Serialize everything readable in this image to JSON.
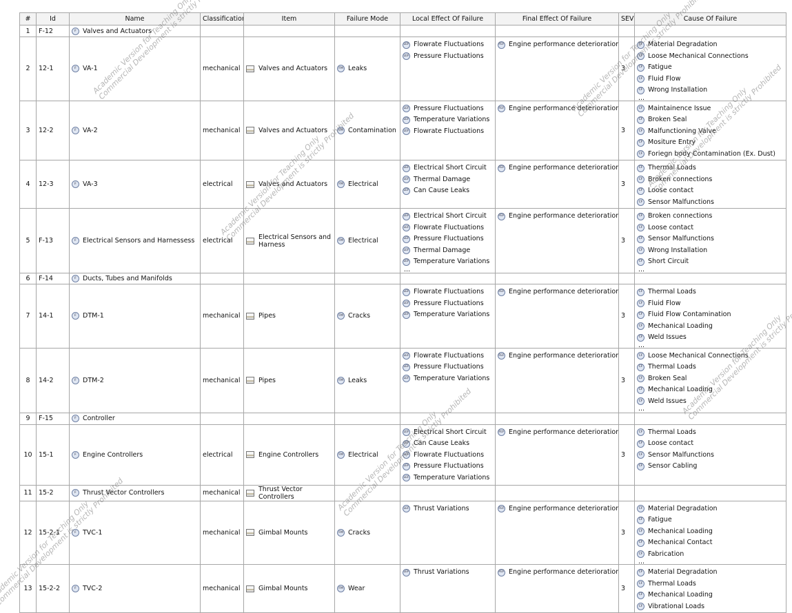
{
  "columns": [
    "#",
    "Id",
    "Name",
    "Classification",
    "Item",
    "Failure Mode",
    "Local Effect Of Failure",
    "Final Effect Of Failure",
    "SEV",
    "Cause Of Failure"
  ],
  "icons": {
    "function": "F",
    "failure_mode": "FM",
    "local": "LEF",
    "final": "FEF",
    "cause": "CF"
  },
  "ellipsis": "...",
  "watermark": [
    "Academic Version for Teaching Only",
    "Commercial Development is strictly Prohibited"
  ],
  "rows": [
    {
      "num": "1",
      "id": "F-12",
      "name": "Valves and Actuators"
    },
    {
      "num": "2",
      "id": "12-1",
      "name": "VA-1",
      "classification": "mechanical",
      "item": "Valves and Actuators",
      "failure_mode": "Leaks",
      "local": [
        "Flowrate Fluctuations",
        "Pressure Fluctuations"
      ],
      "final": [
        "Engine performance deterioration"
      ],
      "sev": "3",
      "causes": [
        "Material Degradation",
        "Loose Mechanical Connections",
        "Fatigue",
        "Fluid Flow",
        "Wrong Installation"
      ],
      "causes_truncated": true
    },
    {
      "num": "3",
      "id": "12-2",
      "name": "VA-2",
      "classification": "mechanical",
      "item": "Valves and Actuators",
      "failure_mode": "Contamination",
      "local": [
        "Pressure Fluctuations",
        "Temperature Variations",
        "Flowrate Fluctuations"
      ],
      "final": [
        "Engine performance deterioration"
      ],
      "sev": "3",
      "causes": [
        "Maintainence Issue",
        "Broken Seal",
        "Malfunctioning Valve",
        "Mositure Entry",
        "Foriegn body Contamination (Ex. Dust)"
      ]
    },
    {
      "num": "4",
      "id": "12-3",
      "name": "VA-3",
      "classification": "electrical",
      "item": "Valves and Actuators",
      "failure_mode": "Electrical",
      "local": [
        "Electrical Short Circuit",
        "Thermal Damage",
        "Can Cause Leaks"
      ],
      "final": [
        "Engine performance deterioration"
      ],
      "sev": "3",
      "causes": [
        "Thermal Loads",
        "Broken connections",
        "Loose contact",
        "Sensor Malfunctions"
      ]
    },
    {
      "num": "5",
      "id": "F-13",
      "name": "Electrical Sensors and Harnessess",
      "classification": "electrical",
      "item": "Electrical Sensors and Harness",
      "failure_mode": "Electrical",
      "local": [
        "Electrical Short Circuit",
        "Flowrate Fluctuations",
        "Pressure Fluctuations",
        "Thermal Damage",
        "Temperature Variations"
      ],
      "local_truncated": true,
      "final": [
        "Engine performance deterioration"
      ],
      "sev": "3",
      "causes": [
        "Broken connections",
        "Loose contact",
        "Sensor Malfunctions",
        "Wrong Installation",
        "Short Circuit"
      ],
      "causes_truncated": true
    },
    {
      "num": "6",
      "id": "F-14",
      "name": "Ducts, Tubes and Manifolds"
    },
    {
      "num": "7",
      "id": "14-1",
      "name": "DTM-1",
      "classification": "mechanical",
      "item": "Pipes",
      "failure_mode": "Cracks",
      "local": [
        "Flowrate Fluctuations",
        "Pressure Fluctuations",
        "Temperature Variations"
      ],
      "final": [
        "Engine performance deterioration"
      ],
      "sev": "3",
      "causes": [
        "Thermal Loads",
        "Fluid Flow",
        "Fluid Flow Contamination",
        "Mechanical Loading",
        "Weld Issues"
      ],
      "causes_truncated": true
    },
    {
      "num": "8",
      "id": "14-2",
      "name": "DTM-2",
      "classification": "mechanical",
      "item": "Pipes",
      "failure_mode": "Leaks",
      "local": [
        "Flowrate Fluctuations",
        "Pressure Fluctuations",
        "Temperature Variations"
      ],
      "final": [
        "Engine performance deterioration"
      ],
      "sev": "3",
      "causes": [
        "Loose Mechanical Connections",
        "Thermal Loads",
        "Broken Seal",
        "Mechanical Loading",
        "Weld Issues"
      ],
      "causes_truncated": true
    },
    {
      "num": "9",
      "id": "F-15",
      "name": "Controller"
    },
    {
      "num": "10",
      "id": "15-1",
      "name": "Engine Controllers",
      "classification": "electrical",
      "item": "Engine Controllers",
      "failure_mode": "Electrical",
      "local": [
        "Electrical Short Circuit",
        "Can Cause Leaks",
        "Flowrate Fluctuations",
        "Pressure Fluctuations",
        "Temperature Variations"
      ],
      "final": [
        "Engine performance deterioration"
      ],
      "sev": "3",
      "causes": [
        "Thermal Loads",
        "Loose contact",
        "Sensor Malfunctions",
        "Sensor Cabling"
      ]
    },
    {
      "num": "11",
      "id": "15-2",
      "name": "Thrust Vector Controllers",
      "classification": "mechanical",
      "item": "Thrust Vector Controllers"
    },
    {
      "num": "12",
      "id": "15-2-1",
      "name": "TVC-1",
      "classification": "mechanical",
      "item": "Gimbal Mounts",
      "failure_mode": "Cracks",
      "local": [
        "Thrust Variations"
      ],
      "final": [
        "Engine performance deterioration"
      ],
      "sev": "3",
      "causes": [
        "Material Degradation",
        "Fatigue",
        "Mechanical Loading",
        "Mechanical Contact",
        "Fabrication"
      ],
      "causes_truncated": true
    },
    {
      "num": "13",
      "id": "15-2-2",
      "name": "TVC-2",
      "classification": "mechanical",
      "item": "Gimbal Mounts",
      "failure_mode": "Wear",
      "local": [
        "Thrust Variations"
      ],
      "final": [
        "Engine performance deterioration"
      ],
      "sev": "3",
      "causes": [
        "Material Degradation",
        "Thermal Loads",
        "Mechanical Loading",
        "Vibrational Loads"
      ]
    }
  ]
}
